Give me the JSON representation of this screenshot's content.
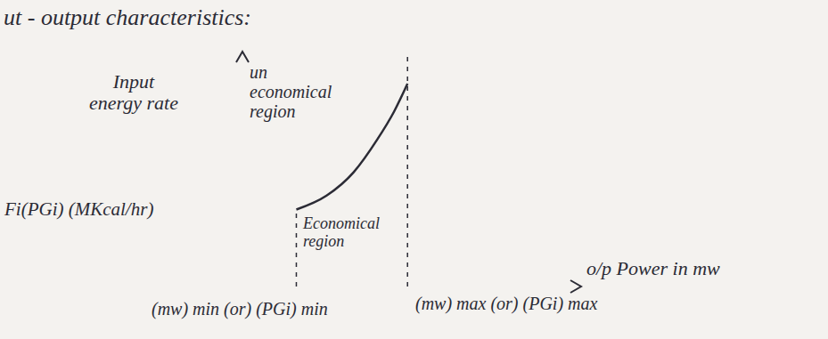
{
  "chart_data": {
    "type": "line",
    "title": "ut - output characteristics:",
    "x_label": "o/p Power in mw",
    "y_label": "Input energy rate",
    "y_unit_label": "Fi(PGi) (MKcal/hr)",
    "annotations": {
      "uneconomical": "un economical region",
      "economical": "Economical region",
      "min_label": "(mw) min (or) (PGi) min",
      "max_label": "(mw) max (or) (PGi) max"
    },
    "x": [
      1.6,
      2.5,
      3.3,
      4.0,
      4.5,
      4.9
    ],
    "values": [
      3.3,
      3.9,
      4.9,
      6.3,
      7.5,
      8.7
    ],
    "xlim": [
      0,
      10
    ],
    "ylim": [
      0,
      10
    ],
    "tick_labels": false,
    "grid": false,
    "color": "#2b2b35",
    "marker": "none",
    "line_style": "solid"
  }
}
